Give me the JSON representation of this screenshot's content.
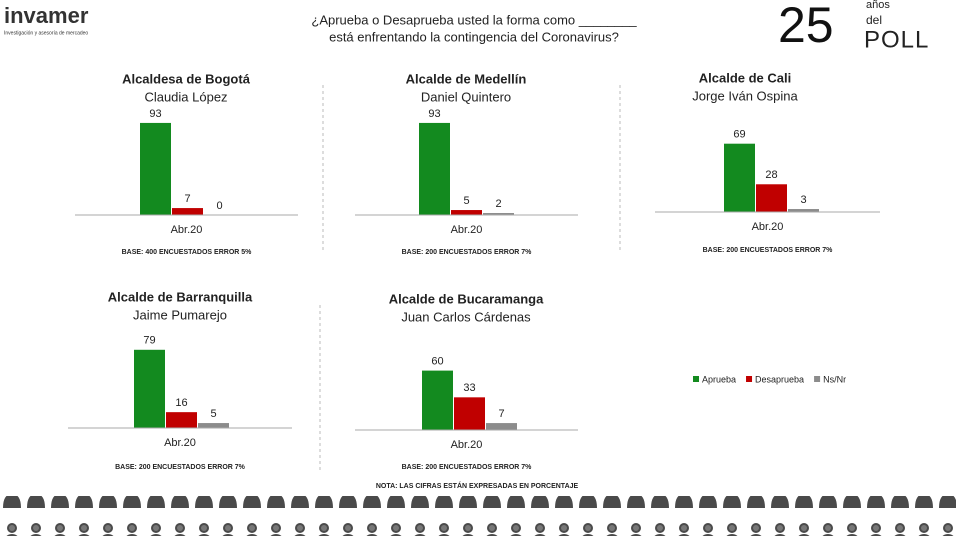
{
  "header": {
    "brand": "invamer",
    "brand_sub": "Investigación y asesoría de mercadeo",
    "question_line1": "¿Aprueba o Desaprueba usted la forma como ________",
    "question_line2": "está enfrentando la contingencia del Coronavirus?",
    "badge_number": "25",
    "badge_line1": "años",
    "badge_line2": "del",
    "badge_line3": "POLL"
  },
  "chart_data": [
    {
      "type": "bar",
      "title": "Alcaldesa de Bogotá",
      "subtitle": "Claudia López",
      "categories": [
        "Abr.20"
      ],
      "series": [
        {
          "name": "Aprueba",
          "color": "#138a1f",
          "values": [
            93
          ]
        },
        {
          "name": "Desaprueba",
          "color": "#c00000",
          "values": [
            7
          ]
        },
        {
          "name": "Ns/Nr",
          "color": "#8c8c8c",
          "values": [
            0
          ]
        }
      ],
      "note": "BASE: 400 ENCUESTADOS ERROR 5%"
    },
    {
      "type": "bar",
      "title": "Alcalde de Medellín",
      "subtitle": "Daniel Quintero",
      "categories": [
        "Abr.20"
      ],
      "series": [
        {
          "name": "Aprueba",
          "color": "#138a1f",
          "values": [
            93
          ]
        },
        {
          "name": "Desaprueba",
          "color": "#c00000",
          "values": [
            5
          ]
        },
        {
          "name": "Ns/Nr",
          "color": "#8c8c8c",
          "values": [
            2
          ]
        }
      ],
      "note": "BASE: 200 ENCUESTADOS ERROR 7%"
    },
    {
      "type": "bar",
      "title": "Alcalde de Cali",
      "subtitle": "Jorge Iván Ospina",
      "categories": [
        "Abr.20"
      ],
      "series": [
        {
          "name": "Aprueba",
          "color": "#138a1f",
          "values": [
            69
          ]
        },
        {
          "name": "Desaprueba",
          "color": "#c00000",
          "values": [
            28
          ]
        },
        {
          "name": "Ns/Nr",
          "color": "#8c8c8c",
          "values": [
            3
          ]
        }
      ],
      "note": "BASE: 200 ENCUESTADOS ERROR 7%"
    },
    {
      "type": "bar",
      "title": "Alcalde de Barranquilla",
      "subtitle": "Jaime Pumarejo",
      "categories": [
        "Abr.20"
      ],
      "series": [
        {
          "name": "Aprueba",
          "color": "#138a1f",
          "values": [
            79
          ]
        },
        {
          "name": "Desaprueba",
          "color": "#c00000",
          "values": [
            16
          ]
        },
        {
          "name": "Ns/Nr",
          "color": "#8c8c8c",
          "values": [
            5
          ]
        }
      ],
      "note": "BASE: 200 ENCUESTADOS ERROR 7%"
    },
    {
      "type": "bar",
      "title": "Alcalde de Bucaramanga",
      "subtitle": "Juan Carlos Cárdenas",
      "categories": [
        "Abr.20"
      ],
      "series": [
        {
          "name": "Aprueba",
          "color": "#138a1f",
          "values": [
            60
          ]
        },
        {
          "name": "Desaprueba",
          "color": "#c00000",
          "values": [
            33
          ]
        },
        {
          "name": "Ns/Nr",
          "color": "#8c8c8c",
          "values": [
            7
          ]
        }
      ],
      "note": "BASE: 200 ENCUESTADOS ERROR 7%"
    }
  ],
  "footnote": "NOTA: LAS CIFRAS ESTÁN EXPRESADAS EN PORCENTAJE"
}
